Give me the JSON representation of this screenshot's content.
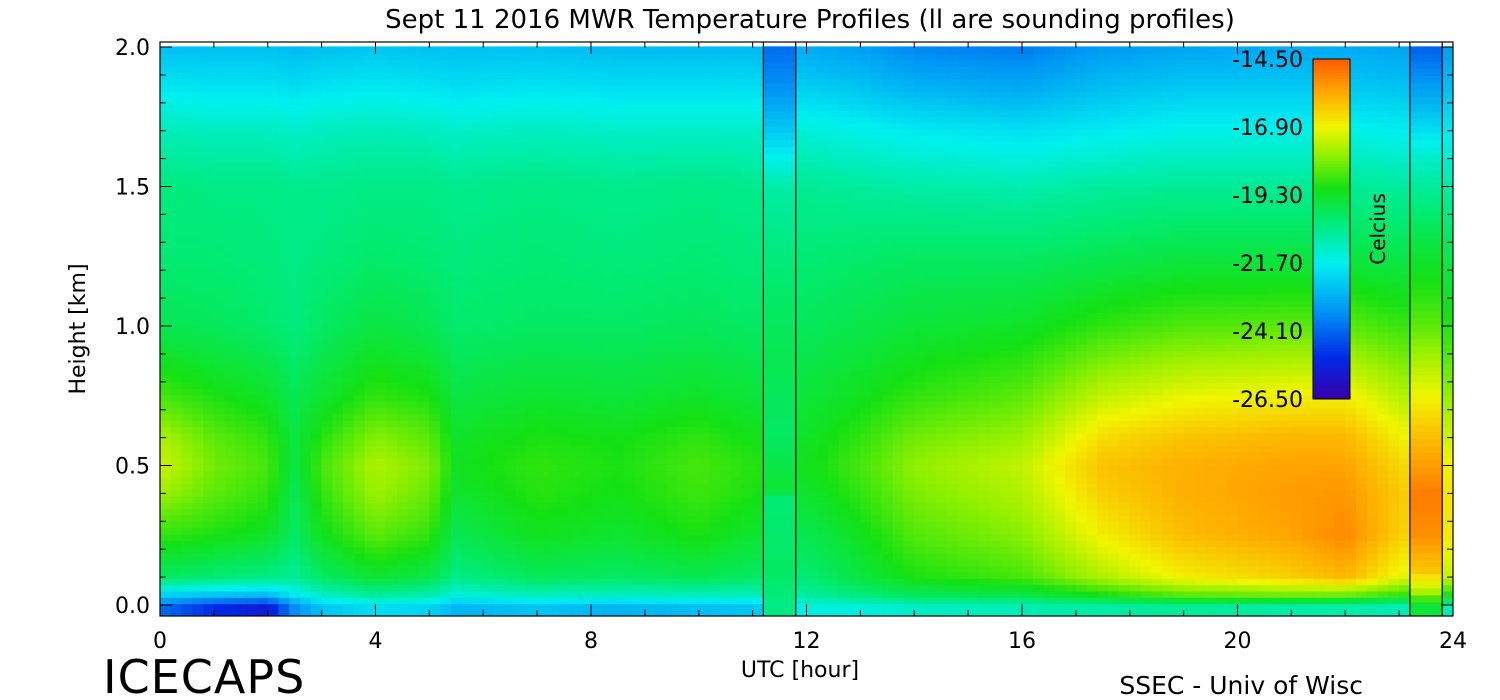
{
  "chart_data": {
    "type": "heatmap",
    "title": "Sept 11 2016 MWR Temperature Profiles (ll are sounding profiles)",
    "xlabel": "UTC [hour]",
    "ylabel": "Height [km]",
    "xlim": [
      0,
      24
    ],
    "ylim": [
      0,
      2.0
    ],
    "x_ticks": [
      "0",
      "4",
      "8",
      "12",
      "16",
      "20",
      "24"
    ],
    "y_ticks": [
      "0.0",
      "0.5",
      "1.0",
      "1.5",
      "2.0"
    ],
    "colorbar": {
      "label": "Celcius",
      "ticks": [
        "-14.50",
        "-16.90",
        "-19.30",
        "-21.70",
        "-24.10",
        "-26.50"
      ],
      "range": [
        -26.5,
        -14.5
      ]
    },
    "sounding_profiles": [
      {
        "x_start": 11.2,
        "x_end": 11.8
      },
      {
        "x_start": 23.2,
        "x_end": 23.8
      }
    ],
    "height_levels": [
      0.0,
      0.03,
      0.1,
      0.25,
      0.4,
      0.5,
      0.6,
      0.75,
      1.0,
      1.25,
      1.5,
      1.7,
      1.85,
      2.0
    ],
    "profiles": [
      {
        "x": 0,
        "t": [
          -24.0,
          -22.5,
          -20.0,
          -18.8,
          -17.8,
          -17.3,
          -17.6,
          -18.6,
          -19.8,
          -20.2,
          -20.3,
          -21.0,
          -21.8,
          -22.6
        ]
      },
      {
        "x": 1,
        "t": [
          -25.0,
          -22.8,
          -20.2,
          -19.0,
          -18.4,
          -18.2,
          -18.4,
          -19.0,
          -19.9,
          -20.2,
          -20.4,
          -21.1,
          -21.9,
          -22.6
        ]
      },
      {
        "x": 2,
        "t": [
          -25.5,
          -23.0,
          -20.4,
          -19.3,
          -18.8,
          -18.6,
          -18.8,
          -19.3,
          -20.1,
          -20.3,
          -20.4,
          -21.1,
          -21.9,
          -22.6
        ]
      },
      {
        "x": 2.5,
        "t": [
          -23.5,
          -22.0,
          -20.6,
          -20.0,
          -19.8,
          -19.6,
          -19.6,
          -19.8,
          -20.3,
          -20.4,
          -20.5,
          -21.2,
          -22.0,
          -22.7
        ]
      },
      {
        "x": 3,
        "t": [
          -22.5,
          -21.3,
          -20.0,
          -19.2,
          -18.8,
          -18.6,
          -18.9,
          -19.4,
          -20.0,
          -20.3,
          -20.5,
          -21.1,
          -21.9,
          -22.6
        ]
      },
      {
        "x": 4,
        "t": [
          -22.0,
          -20.8,
          -19.4,
          -18.4,
          -17.8,
          -17.6,
          -18.0,
          -18.8,
          -19.6,
          -20.1,
          -20.4,
          -21.0,
          -21.8,
          -22.5
        ]
      },
      {
        "x": 5,
        "t": [
          -22.2,
          -21.0,
          -19.7,
          -18.8,
          -18.3,
          -18.1,
          -18.4,
          -19.0,
          -19.8,
          -20.2,
          -20.4,
          -21.1,
          -21.9,
          -22.6
        ]
      },
      {
        "x": 5.5,
        "t": [
          -22.8,
          -21.6,
          -20.4,
          -19.8,
          -19.4,
          -19.2,
          -19.3,
          -19.6,
          -20.1,
          -20.3,
          -20.5,
          -21.2,
          -22.0,
          -22.6
        ]
      },
      {
        "x": 7,
        "t": [
          -22.5,
          -21.2,
          -19.9,
          -19.2,
          -18.9,
          -18.8,
          -19.0,
          -19.4,
          -20.0,
          -20.2,
          -20.4,
          -21.1,
          -21.9,
          -22.6
        ]
      },
      {
        "x": 8.5,
        "t": [
          -22.8,
          -21.3,
          -20.0,
          -19.4,
          -19.1,
          -19.0,
          -19.1,
          -19.5,
          -20.0,
          -20.3,
          -20.5,
          -21.2,
          -22.0,
          -22.7
        ]
      },
      {
        "x": 10,
        "t": [
          -22.6,
          -21.2,
          -19.8,
          -19.0,
          -18.7,
          -18.6,
          -18.8,
          -19.3,
          -19.9,
          -20.2,
          -20.4,
          -21.2,
          -22.0,
          -22.7
        ]
      },
      {
        "x": 11,
        "t": [
          -22.5,
          -21.2,
          -20.0,
          -19.4,
          -19.0,
          -18.9,
          -19.1,
          -19.5,
          -20.0,
          -20.3,
          -20.5,
          -21.2,
          -22.0,
          -22.7
        ]
      },
      {
        "x": 12,
        "t": [
          -21.5,
          -20.8,
          -20.2,
          -19.8,
          -19.4,
          -19.2,
          -19.3,
          -19.5,
          -19.9,
          -20.2,
          -20.6,
          -21.4,
          -22.3,
          -23.0
        ]
      },
      {
        "x": 13,
        "t": [
          -21.5,
          -20.4,
          -19.6,
          -19.2,
          -18.8,
          -18.6,
          -18.8,
          -19.2,
          -19.7,
          -20.1,
          -20.7,
          -21.6,
          -22.5,
          -23.2
        ]
      },
      {
        "x": 14,
        "t": [
          -21.2,
          -20.0,
          -19.0,
          -18.5,
          -18.1,
          -17.9,
          -18.2,
          -18.8,
          -19.5,
          -20.0,
          -20.8,
          -21.8,
          -22.8,
          -23.6
        ]
      },
      {
        "x": 16,
        "t": [
          -21.0,
          -19.8,
          -18.6,
          -18.0,
          -17.6,
          -17.4,
          -17.8,
          -18.4,
          -19.3,
          -20.0,
          -20.9,
          -22.0,
          -23.0,
          -23.8
        ]
      },
      {
        "x": 17.5,
        "t": [
          -20.8,
          -19.2,
          -17.6,
          -16.8,
          -16.3,
          -16.1,
          -16.5,
          -17.4,
          -18.8,
          -19.8,
          -20.7,
          -21.8,
          -22.6,
          -23.3
        ]
      },
      {
        "x": 19,
        "t": [
          -20.6,
          -18.6,
          -16.8,
          -16.0,
          -15.8,
          -15.8,
          -16.1,
          -17.0,
          -18.5,
          -19.6,
          -20.6,
          -21.6,
          -22.4,
          -23.1
        ]
      },
      {
        "x": 21,
        "t": [
          -20.8,
          -18.4,
          -16.3,
          -15.6,
          -15.5,
          -15.6,
          -15.9,
          -16.8,
          -18.4,
          -19.6,
          -20.6,
          -21.6,
          -22.4,
          -23.0
        ]
      },
      {
        "x": 22,
        "t": [
          -20.8,
          -18.5,
          -15.9,
          -15.2,
          -15.4,
          -15.6,
          -15.9,
          -16.8,
          -18.4,
          -19.6,
          -20.6,
          -21.6,
          -22.4,
          -23.0
        ]
      },
      {
        "x": 23,
        "t": [
          -21.0,
          -19.0,
          -17.0,
          -16.3,
          -16.2,
          -16.4,
          -16.8,
          -17.5,
          -18.7,
          -19.7,
          -20.7,
          -21.7,
          -22.5,
          -23.1
        ]
      },
      {
        "x": 24,
        "t": [
          -21.0,
          -19.2,
          -17.4,
          -16.8,
          -16.7,
          -16.9,
          -17.3,
          -17.9,
          -18.9,
          -19.8,
          -20.8,
          -21.8,
          -22.6,
          -23.2
        ]
      }
    ],
    "sounding_columns": [
      {
        "x": 11.5,
        "levels": [
          0.0,
          0.12,
          0.38,
          0.42,
          0.6,
          0.9,
          1.2,
          1.5,
          1.7,
          1.85,
          2.0
        ],
        "t": [
          -20.4,
          -20.0,
          -20.2,
          -19.4,
          -20.0,
          -19.8,
          -20.2,
          -20.8,
          -22.4,
          -23.4,
          -24.0
        ]
      },
      {
        "x": 23.5,
        "levels": [
          0.0,
          0.05,
          0.12,
          0.25,
          0.4,
          0.6,
          0.8,
          1.0,
          1.3,
          1.6,
          1.8,
          2.0
        ],
        "t": [
          -19.5,
          -17.6,
          -16.2,
          -15.3,
          -15.0,
          -16.0,
          -17.2,
          -18.4,
          -19.6,
          -21.2,
          -22.8,
          -24.2
        ]
      }
    ]
  },
  "branding": {
    "left": "ICECAPS",
    "right": "SSEC - Univ of Wisc"
  }
}
